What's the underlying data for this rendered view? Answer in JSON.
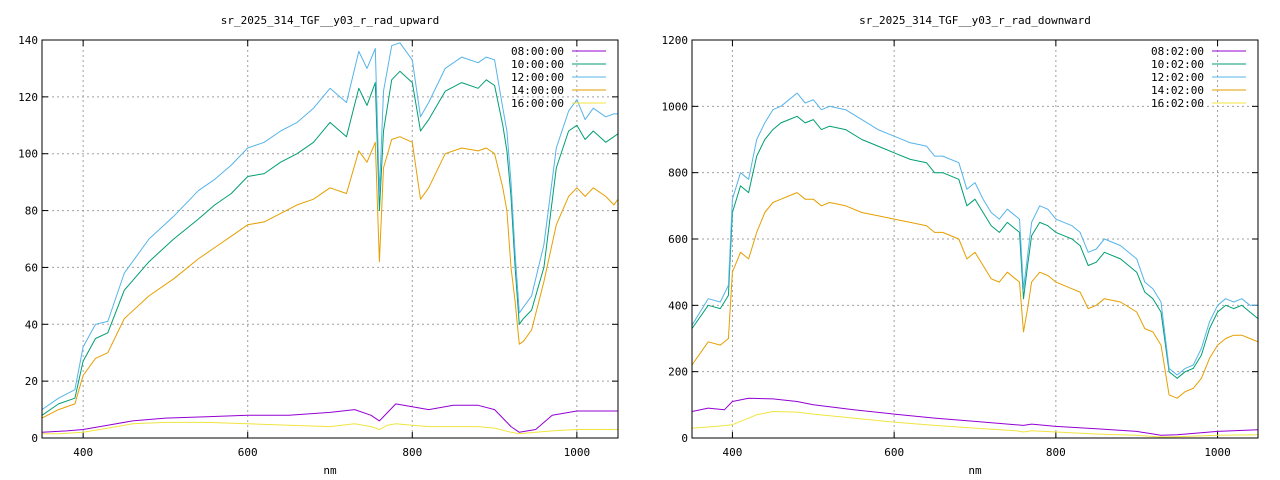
{
  "chart_data": [
    {
      "type": "line",
      "title": "sr_2025_314_TGF__y03_r_rad_upward",
      "xlabel": "nm",
      "ylabel": "",
      "xlim": [
        350,
        1050
      ],
      "ylim": [
        0,
        140
      ],
      "xticks": [
        400,
        600,
        800,
        1000
      ],
      "yticks": [
        0,
        20,
        40,
        60,
        80,
        100,
        120,
        140
      ],
      "grid": true,
      "legend": "top-right",
      "series": [
        {
          "name": "08:00:00",
          "color": "#9400d3",
          "x": [
            350,
            380,
            400,
            430,
            460,
            500,
            550,
            600,
            650,
            700,
            730,
            750,
            760,
            770,
            780,
            800,
            820,
            850,
            880,
            900,
            920,
            930,
            950,
            970,
            1000,
            1050
          ],
          "y": [
            2,
            2.5,
            3,
            4.5,
            6,
            7,
            7.5,
            8,
            8,
            9,
            10,
            8,
            6,
            9,
            12,
            11,
            10,
            11.5,
            11.5,
            10,
            4,
            2,
            3,
            8,
            9.5,
            9.5
          ]
        },
        {
          "name": "10:00:00",
          "color": "#009e73",
          "x": [
            350,
            370,
            390,
            400,
            415,
            430,
            450,
            480,
            510,
            540,
            560,
            580,
            600,
            620,
            640,
            660,
            680,
            700,
            720,
            735,
            745,
            755,
            760,
            765,
            775,
            785,
            800,
            810,
            820,
            840,
            860,
            880,
            890,
            900,
            910,
            915,
            920,
            925,
            930,
            935,
            945,
            960,
            975,
            990,
            1000,
            1010,
            1020,
            1035,
            1045,
            1050
          ],
          "y": [
            8,
            12,
            14,
            27,
            35,
            37,
            52,
            62,
            70,
            77,
            82,
            86,
            92,
            93,
            97,
            100,
            104,
            111,
            106,
            123,
            117,
            125,
            80,
            108,
            126,
            129,
            125,
            108,
            112,
            122,
            125,
            123,
            126,
            124,
            110,
            101,
            85,
            60,
            40,
            42,
            45,
            60,
            95,
            108,
            110,
            105,
            108,
            104,
            106,
            107
          ]
        },
        {
          "name": "12:00:00",
          "color": "#56b4e9",
          "x": [
            350,
            370,
            390,
            400,
            415,
            430,
            450,
            480,
            510,
            540,
            560,
            580,
            600,
            620,
            640,
            660,
            680,
            700,
            720,
            735,
            745,
            755,
            760,
            765,
            775,
            785,
            800,
            810,
            820,
            840,
            860,
            880,
            890,
            900,
            910,
            915,
            920,
            925,
            930,
            935,
            945,
            960,
            975,
            990,
            1000,
            1010,
            1020,
            1035,
            1045,
            1050
          ],
          "y": [
            10,
            14,
            17,
            32,
            40,
            41,
            58,
            70,
            78,
            87,
            91,
            96,
            102,
            104,
            108,
            111,
            116,
            123,
            118,
            136,
            130,
            137,
            86,
            122,
            138,
            139,
            133,
            113,
            118,
            130,
            134,
            132,
            134,
            133,
            116,
            108,
            90,
            65,
            44,
            46,
            50,
            68,
            102,
            115,
            119,
            112,
            116,
            113,
            114,
            114
          ]
        },
        {
          "name": "14:00:00",
          "color": "#e69f00",
          "x": [
            350,
            370,
            390,
            400,
            415,
            430,
            450,
            480,
            510,
            540,
            560,
            580,
            600,
            620,
            640,
            660,
            680,
            700,
            720,
            735,
            745,
            755,
            760,
            765,
            775,
            785,
            800,
            810,
            820,
            840,
            860,
            880,
            890,
            900,
            910,
            915,
            920,
            925,
            930,
            935,
            945,
            960,
            975,
            990,
            1000,
            1010,
            1020,
            1035,
            1045,
            1050
          ],
          "y": [
            7,
            10,
            12,
            22,
            28,
            30,
            42,
            50,
            56,
            63,
            67,
            71,
            75,
            76,
            79,
            82,
            84,
            88,
            86,
            101,
            97,
            104,
            62,
            95,
            105,
            106,
            104,
            84,
            88,
            100,
            102,
            101,
            102,
            100,
            88,
            80,
            60,
            48,
            33,
            34,
            38,
            55,
            75,
            85,
            88,
            85,
            88,
            85,
            82,
            84
          ]
        },
        {
          "name": "16:00:00",
          "color": "#f0e442",
          "x": [
            350,
            370,
            400,
            430,
            460,
            500,
            550,
            600,
            650,
            700,
            730,
            750,
            760,
            770,
            780,
            800,
            820,
            850,
            880,
            900,
            920,
            930,
            950,
            970,
            1000,
            1050
          ],
          "y": [
            1.5,
            1.5,
            2,
            3.5,
            5,
            5.5,
            5.5,
            5,
            4.5,
            4,
            5,
            4,
            3,
            4.5,
            5,
            4.5,
            4,
            4,
            4,
            3.5,
            2,
            1.5,
            2,
            2.5,
            3,
            3
          ]
        }
      ]
    },
    {
      "type": "line",
      "title": "sr_2025_314_TGF__y03_r_rad_downward",
      "xlabel": "nm",
      "ylabel": "",
      "xlim": [
        350,
        1050
      ],
      "ylim": [
        0,
        1200
      ],
      "xticks": [
        400,
        600,
        800,
        1000
      ],
      "yticks": [
        0,
        200,
        400,
        600,
        800,
        1000,
        1200
      ],
      "grid": true,
      "legend": "top-right",
      "series": [
        {
          "name": "08:02:00",
          "color": "#9400d3",
          "x": [
            350,
            370,
            390,
            400,
            420,
            450,
            480,
            500,
            550,
            600,
            650,
            700,
            750,
            760,
            770,
            800,
            850,
            900,
            930,
            950,
            1000,
            1050
          ],
          "y": [
            80,
            90,
            85,
            110,
            120,
            118,
            110,
            100,
            85,
            72,
            60,
            50,
            40,
            38,
            42,
            35,
            28,
            20,
            8,
            10,
            20,
            25
          ]
        },
        {
          "name": "10:02:00",
          "color": "#009e73",
          "x": [
            350,
            370,
            385,
            395,
            400,
            410,
            420,
            430,
            440,
            450,
            460,
            470,
            480,
            490,
            500,
            510,
            520,
            540,
            560,
            580,
            600,
            620,
            640,
            650,
            660,
            680,
            690,
            700,
            710,
            720,
            730,
            740,
            750,
            755,
            760,
            765,
            770,
            780,
            790,
            800,
            810,
            820,
            830,
            840,
            850,
            860,
            880,
            900,
            910,
            920,
            925,
            930,
            940,
            950,
            960,
            970,
            980,
            990,
            1000,
            1010,
            1020,
            1030,
            1040,
            1050
          ],
          "y": [
            330,
            400,
            390,
            430,
            680,
            760,
            740,
            850,
            900,
            930,
            950,
            960,
            970,
            950,
            960,
            930,
            940,
            930,
            900,
            880,
            860,
            840,
            830,
            800,
            800,
            780,
            700,
            720,
            680,
            640,
            620,
            650,
            630,
            620,
            420,
            520,
            610,
            650,
            640,
            620,
            610,
            600,
            580,
            520,
            530,
            560,
            540,
            500,
            440,
            420,
            400,
            380,
            200,
            180,
            200,
            210,
            250,
            330,
            380,
            400,
            390,
            400,
            380,
            360
          ]
        },
        {
          "name": "12:02:00",
          "color": "#56b4e9",
          "x": [
            350,
            370,
            385,
            395,
            400,
            410,
            420,
            430,
            440,
            450,
            460,
            470,
            480,
            490,
            500,
            510,
            520,
            540,
            560,
            580,
            600,
            620,
            640,
            650,
            660,
            680,
            690,
            700,
            710,
            720,
            730,
            740,
            750,
            755,
            760,
            765,
            770,
            780,
            790,
            800,
            810,
            820,
            830,
            840,
            850,
            860,
            880,
            900,
            910,
            920,
            925,
            930,
            940,
            950,
            960,
            970,
            980,
            990,
            1000,
            1010,
            1020,
            1030,
            1040,
            1050
          ],
          "y": [
            340,
            420,
            410,
            460,
            720,
            800,
            780,
            900,
            950,
            990,
            1000,
            1020,
            1040,
            1010,
            1020,
            990,
            1000,
            990,
            960,
            930,
            910,
            890,
            880,
            850,
            850,
            830,
            750,
            770,
            720,
            680,
            660,
            690,
            670,
            660,
            450,
            550,
            650,
            700,
            690,
            660,
            650,
            640,
            620,
            560,
            570,
            600,
            580,
            540,
            470,
            450,
            430,
            410,
            210,
            190,
            210,
            220,
            270,
            350,
            400,
            420,
            410,
            420,
            400,
            400
          ]
        },
        {
          "name": "14:02:00",
          "color": "#e69f00",
          "x": [
            350,
            370,
            385,
            395,
            400,
            410,
            420,
            430,
            440,
            450,
            460,
            470,
            480,
            490,
            500,
            510,
            520,
            540,
            560,
            580,
            600,
            620,
            640,
            650,
            660,
            680,
            690,
            700,
            710,
            720,
            730,
            740,
            750,
            755,
            760,
            765,
            770,
            780,
            790,
            800,
            810,
            820,
            830,
            840,
            850,
            860,
            880,
            900,
            910,
            920,
            925,
            930,
            940,
            950,
            960,
            970,
            980,
            990,
            1000,
            1010,
            1020,
            1030,
            1040,
            1050
          ],
          "y": [
            220,
            290,
            280,
            300,
            500,
            560,
            540,
            620,
            680,
            710,
            720,
            730,
            740,
            720,
            720,
            700,
            710,
            700,
            680,
            670,
            660,
            650,
            640,
            620,
            620,
            600,
            540,
            560,
            520,
            480,
            470,
            500,
            480,
            470,
            320,
            390,
            470,
            500,
            490,
            470,
            460,
            450,
            440,
            390,
            400,
            420,
            410,
            380,
            330,
            320,
            300,
            280,
            130,
            120,
            140,
            150,
            180,
            240,
            280,
            300,
            310,
            310,
            300,
            290
          ]
        },
        {
          "name": "16:02:00",
          "color": "#f0e442",
          "x": [
            350,
            380,
            400,
            430,
            450,
            480,
            500,
            550,
            600,
            650,
            700,
            750,
            760,
            770,
            800,
            850,
            900,
            930,
            950,
            1000,
            1050
          ],
          "y": [
            30,
            35,
            40,
            70,
            80,
            78,
            72,
            60,
            48,
            38,
            30,
            22,
            18,
            22,
            18,
            12,
            8,
            3,
            4,
            8,
            10
          ]
        }
      ]
    }
  ]
}
